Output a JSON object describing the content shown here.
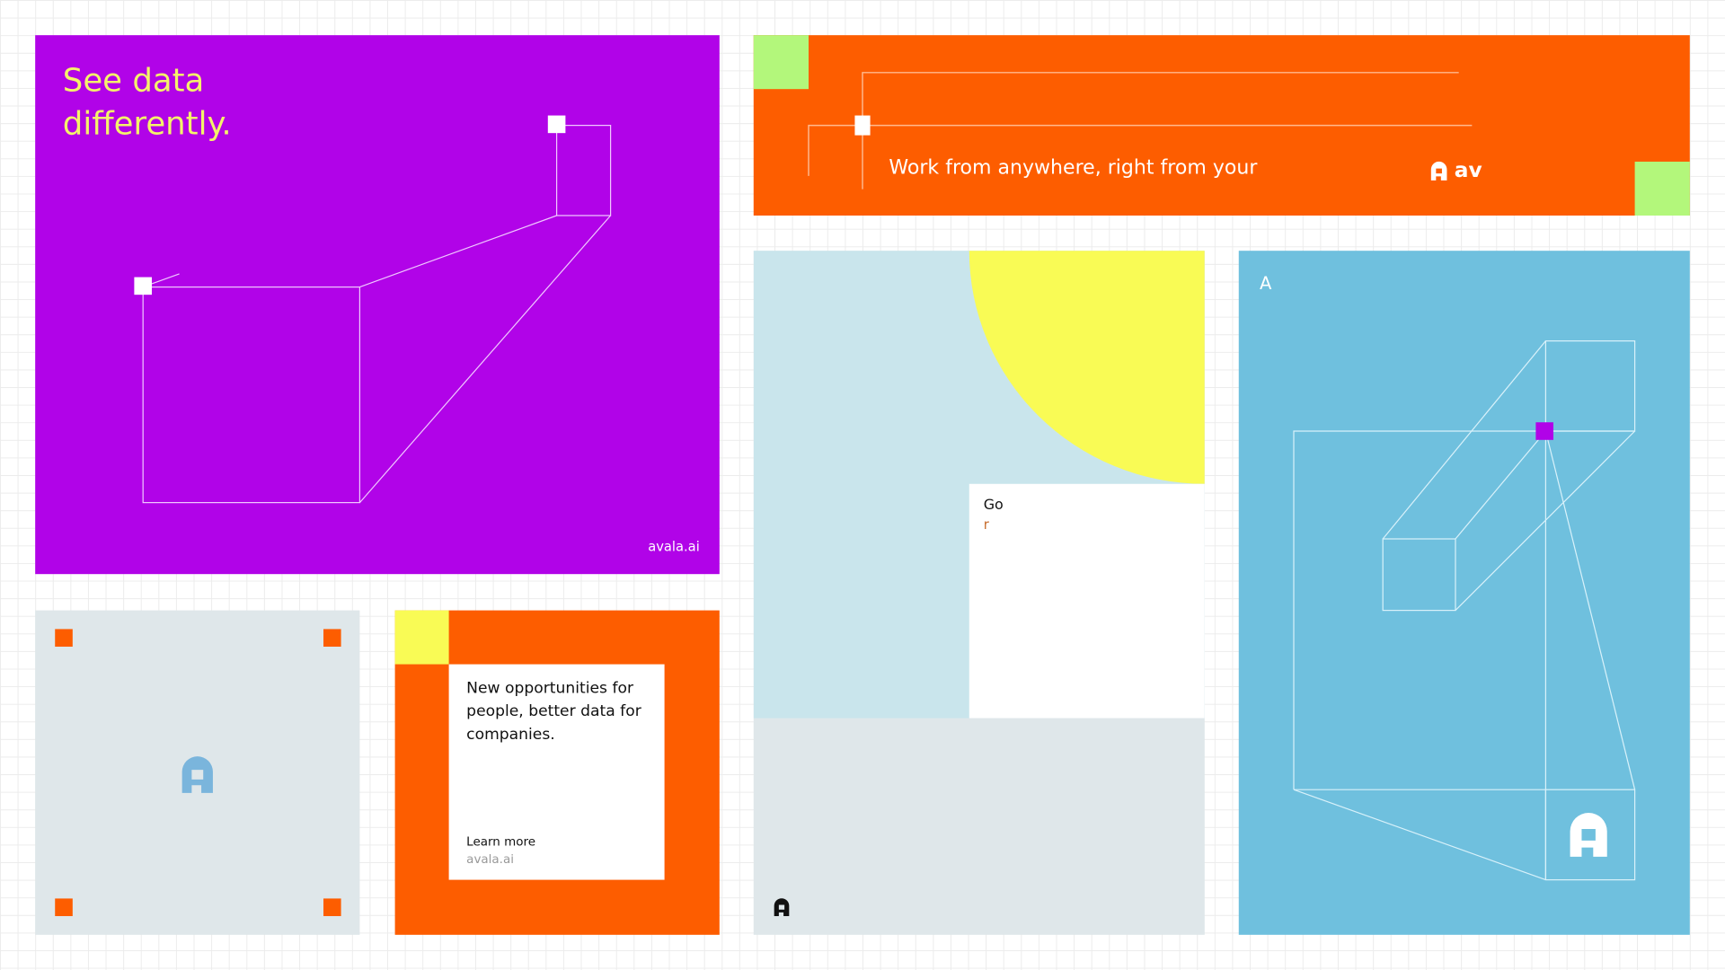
{
  "colors": {
    "purple": "#b103e8",
    "orange": "#fd5d00",
    "green": "#b3f77b",
    "yellow": "#f9fb55",
    "light_blue": "#c9e5ec",
    "grey": "#dfe7ea",
    "sky_blue": "#6fc0de",
    "logo_blue": "#7ab5dc"
  },
  "purple_card": {
    "headline": "See data differently.",
    "url": "avala.ai"
  },
  "banner": {
    "text": "Work from anywhere, right from your",
    "logo_text": "av"
  },
  "split_card": {
    "text": "Go",
    "subtext": "r"
  },
  "blue_card": {
    "letter": "A"
  },
  "orange_card": {
    "headline": "New opportunities for people, better data for companies.",
    "cta": "Learn more",
    "url": "avala.ai"
  },
  "icons": {
    "logo": "avala-logo-icon"
  }
}
